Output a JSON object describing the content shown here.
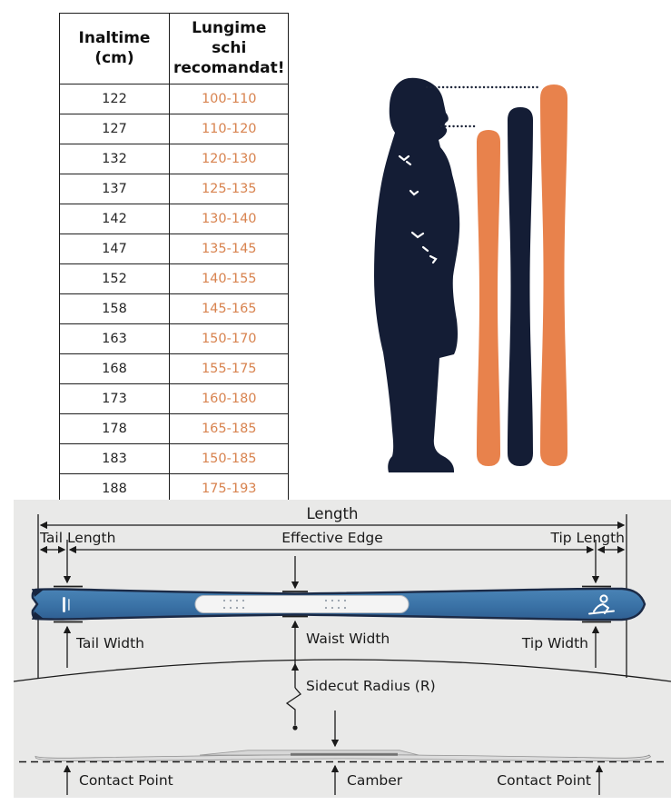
{
  "table": {
    "header": {
      "col1_line1": "Inaltime",
      "col1_line2": "(cm)",
      "col2_line1": "Lungime schi",
      "col2_line2": "recomandat!"
    },
    "rows": [
      {
        "inaltime": "122",
        "lungime": "100-110"
      },
      {
        "inaltime": "127",
        "lungime": "110-120"
      },
      {
        "inaltime": "132",
        "lungime": "120-130"
      },
      {
        "inaltime": "137",
        "lungime": "125-135"
      },
      {
        "inaltime": "142",
        "lungime": "130-140"
      },
      {
        "inaltime": "147",
        "lungime": "135-145"
      },
      {
        "inaltime": "152",
        "lungime": "140-155"
      },
      {
        "inaltime": "158",
        "lungime": "145-165"
      },
      {
        "inaltime": "163",
        "lungime": "150-170"
      },
      {
        "inaltime": "168",
        "lungime": "155-175"
      },
      {
        "inaltime": "173",
        "lungime": "160-180"
      },
      {
        "inaltime": "178",
        "lungime": "165-185"
      },
      {
        "inaltime": "183",
        "lungime": "150-185"
      },
      {
        "inaltime": "188",
        "lungime": "175-193"
      }
    ]
  },
  "diagram": {
    "length": "Length",
    "tail_length": "Tail Length",
    "effective_edge": "Effective Edge",
    "tip_length": "Tip Length",
    "tail_width": "Tail Width",
    "waist_width": "Waist Width",
    "tip_width": "Tip Width",
    "sidecut_radius": "Sidecut Radius (R)",
    "contact_point_left": "Contact Point",
    "camber": "Camber",
    "contact_point_right": "Contact Point"
  },
  "colors": {
    "table_value_orange": "#D8834F",
    "ski_orange": "#E8824C",
    "dark_navy": "#141D35",
    "ski_blue": "#3D74A9",
    "ski_edge_navy": "#1B2A46",
    "panel_gray": "#E9E9E8",
    "line_black": "#1A1A1A"
  }
}
